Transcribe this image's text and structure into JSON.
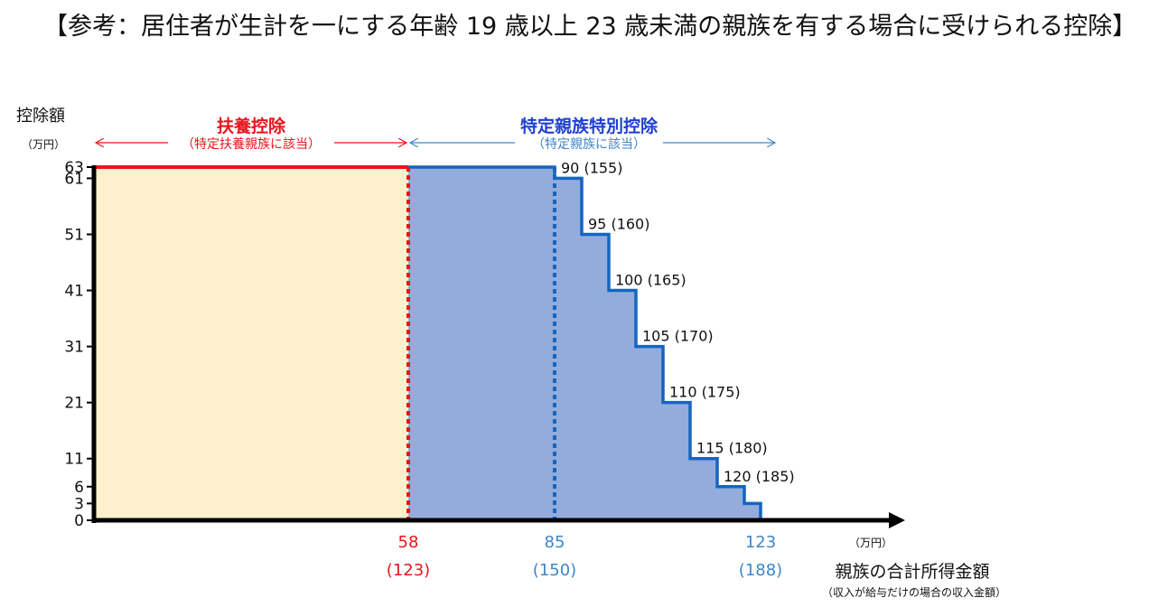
{
  "heading": "【参考：居住者が生計を一にする年齢 19 歳以上 23 歳未満の親族を有する場合に受けられる控除】",
  "colors": {
    "fuyo_fill": "#fdf0cc",
    "tokutei_fill": "#93acdc",
    "red": "#e8151b",
    "blue": "#1565c0",
    "blue_text": "#1f3fd0",
    "light_blue": "#3f86c9"
  },
  "chart_data": {
    "type": "area",
    "ylabel": "控除額",
    "yunit": "（万円）",
    "xlabel": "親族の合計所得金額",
    "xlabel_sub": "（収入が給与だけの場合の収入金額）",
    "xunit": "（万円）",
    "y_ticks": [
      0,
      3,
      6,
      11,
      21,
      31,
      41,
      51,
      61,
      63
    ],
    "x_ticks": [
      {
        "value": 58,
        "label": "58",
        "sub": "(123)",
        "color": "red"
      },
      {
        "value": 85,
        "label": "85",
        "sub": "(150)",
        "color": "blue"
      },
      {
        "value": 123,
        "label": "123",
        "sub": "(188)",
        "color": "blue"
      }
    ],
    "regions": [
      {
        "name": "扶養控除",
        "note": "（特定扶養親族に該当）",
        "from": 0,
        "to": 58,
        "color": "red"
      },
      {
        "name": "特定親族特別控除",
        "note": "（特定親族に該当）",
        "from": 58,
        "to": 123,
        "color": "blue"
      }
    ],
    "steps": [
      {
        "from": 0,
        "to": 85,
        "value": 63
      },
      {
        "from": 85,
        "to": 90,
        "value": 61,
        "label": "90 (155)"
      },
      {
        "from": 90,
        "to": 95,
        "value": 51,
        "label": "95 (160)"
      },
      {
        "from": 95,
        "to": 100,
        "value": 41,
        "label": "100 (165)"
      },
      {
        "from": 100,
        "to": 105,
        "value": 31,
        "label": "105 (170)"
      },
      {
        "from": 105,
        "to": 110,
        "value": 21,
        "label": "110 (175)"
      },
      {
        "from": 110,
        "to": 115,
        "value": 11,
        "label": "115 (180)"
      },
      {
        "from": 115,
        "to": 120,
        "value": 6,
        "label": "120 (185)"
      },
      {
        "from": 120,
        "to": 123,
        "value": 3
      },
      {
        "from": 123,
        "to": 131,
        "value": 0
      }
    ]
  }
}
